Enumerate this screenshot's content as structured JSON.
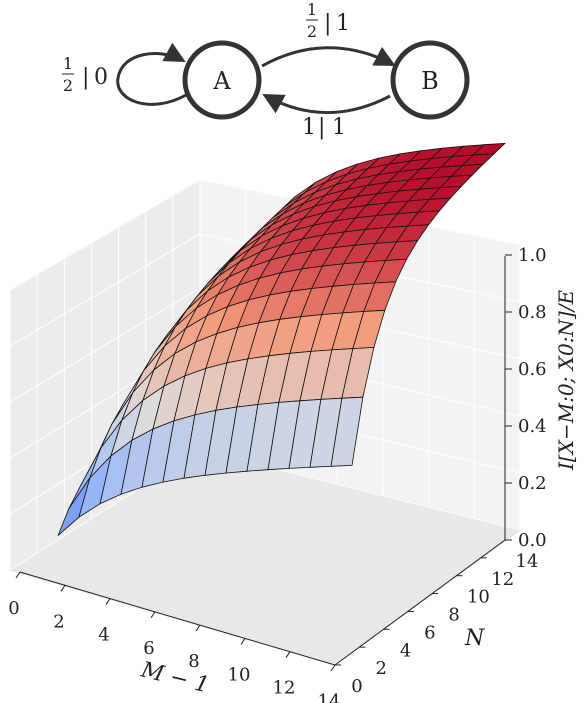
{
  "diagram": {
    "states": [
      {
        "id": "A",
        "label": "A"
      },
      {
        "id": "B",
        "label": "B"
      }
    ],
    "transitions": [
      {
        "from": "A",
        "to": "A",
        "prob_num": "1",
        "prob_den": "2",
        "emit": "0"
      },
      {
        "from": "A",
        "to": "B",
        "prob_num": "1",
        "prob_den": "2",
        "emit": "1"
      },
      {
        "from": "B",
        "to": "A",
        "prob": "1",
        "emit": "1"
      }
    ]
  },
  "chart_data": {
    "type": "surface",
    "x_axis_label": "M − 1",
    "y_axis_label": "N",
    "z_axis_label": "I[X−M:0; X0:N]/E",
    "x_ticks": [
      0,
      2,
      4,
      6,
      8,
      10,
      12,
      14
    ],
    "y_ticks": [
      0,
      2,
      4,
      6,
      8,
      10,
      12,
      14
    ],
    "z_ticks": [
      "0.0",
      "0.2",
      "0.4",
      "0.6",
      "0.8",
      "1.0"
    ],
    "x_range": [
      0,
      14
    ],
    "y_range": [
      0,
      14
    ],
    "z_range": [
      0,
      1.0
    ],
    "surface_function": "z = (1 - 2^-(N+1)) * (1 - 2^-(M+1)) approximately",
    "grid": true,
    "colormap": "coolwarm"
  }
}
